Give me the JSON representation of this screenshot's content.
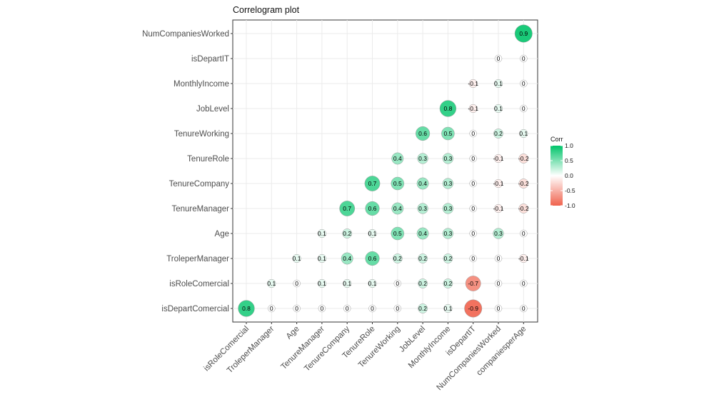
{
  "chart_data": {
    "type": "heatmap",
    "title": "Correlogram plot",
    "x_labels": [
      "isRoleComercial",
      "TroleperManager",
      "Age",
      "TenureManager",
      "TenureCompany",
      "TenureRole",
      "TenureWorking",
      "JobLevel",
      "MonthlyIncome",
      "isDepartIT",
      "NumCompaniesWorked",
      "companiesperAge"
    ],
    "y_labels": [
      "NumCompaniesWorked",
      "isDepartIT",
      "MonthlyIncome",
      "JobLevel",
      "TenureWorking",
      "TenureRole",
      "TenureCompany",
      "TenureManager",
      "Age",
      "TroleperManager",
      "isRoleComercial",
      "isDepartComercial"
    ],
    "cells": [
      {
        "row": 0,
        "col": 11,
        "value": 0.9,
        "label": "0.9"
      },
      {
        "row": 1,
        "col": 10,
        "value": 0.0,
        "label": "0"
      },
      {
        "row": 1,
        "col": 11,
        "value": 0.0,
        "label": "0"
      },
      {
        "row": 2,
        "col": 9,
        "value": -0.1,
        "label": "-0.1"
      },
      {
        "row": 2,
        "col": 10,
        "value": 0.1,
        "label": "0.1"
      },
      {
        "row": 2,
        "col": 11,
        "value": 0.0,
        "label": "0"
      },
      {
        "row": 3,
        "col": 8,
        "value": 0.8,
        "label": "0.8"
      },
      {
        "row": 3,
        "col": 9,
        "value": -0.1,
        "label": "-0.1"
      },
      {
        "row": 3,
        "col": 10,
        "value": 0.1,
        "label": "0.1"
      },
      {
        "row": 3,
        "col": 11,
        "value": 0.0,
        "label": "0"
      },
      {
        "row": 4,
        "col": 7,
        "value": 0.6,
        "label": "0.6"
      },
      {
        "row": 4,
        "col": 8,
        "value": 0.5,
        "label": "0.5"
      },
      {
        "row": 4,
        "col": 9,
        "value": 0.0,
        "label": "0"
      },
      {
        "row": 4,
        "col": 10,
        "value": 0.2,
        "label": "0.2"
      },
      {
        "row": 4,
        "col": 11,
        "value": 0.1,
        "label": "0.1"
      },
      {
        "row": 5,
        "col": 6,
        "value": 0.4,
        "label": "0.4"
      },
      {
        "row": 5,
        "col": 7,
        "value": 0.3,
        "label": "0.3"
      },
      {
        "row": 5,
        "col": 8,
        "value": 0.3,
        "label": "0.3"
      },
      {
        "row": 5,
        "col": 9,
        "value": 0.0,
        "label": "0"
      },
      {
        "row": 5,
        "col": 10,
        "value": -0.1,
        "label": "-0.1"
      },
      {
        "row": 5,
        "col": 11,
        "value": -0.2,
        "label": "-0.2"
      },
      {
        "row": 6,
        "col": 5,
        "value": 0.7,
        "label": "0.7"
      },
      {
        "row": 6,
        "col": 6,
        "value": 0.5,
        "label": "0.5"
      },
      {
        "row": 6,
        "col": 7,
        "value": 0.4,
        "label": "0.4"
      },
      {
        "row": 6,
        "col": 8,
        "value": 0.3,
        "label": "0.3"
      },
      {
        "row": 6,
        "col": 9,
        "value": 0.0,
        "label": "0"
      },
      {
        "row": 6,
        "col": 10,
        "value": -0.1,
        "label": "-0.1"
      },
      {
        "row": 6,
        "col": 11,
        "value": -0.2,
        "label": "-0.2"
      },
      {
        "row": 7,
        "col": 4,
        "value": 0.7,
        "label": "0.7"
      },
      {
        "row": 7,
        "col": 5,
        "value": 0.6,
        "label": "0.6"
      },
      {
        "row": 7,
        "col": 6,
        "value": 0.4,
        "label": "0.4"
      },
      {
        "row": 7,
        "col": 7,
        "value": 0.3,
        "label": "0.3"
      },
      {
        "row": 7,
        "col": 8,
        "value": 0.3,
        "label": "0.3"
      },
      {
        "row": 7,
        "col": 9,
        "value": 0.0,
        "label": "0"
      },
      {
        "row": 7,
        "col": 10,
        "value": -0.1,
        "label": "-0.1"
      },
      {
        "row": 7,
        "col": 11,
        "value": -0.2,
        "label": "-0.2"
      },
      {
        "row": 8,
        "col": 3,
        "value": 0.1,
        "label": "0.1"
      },
      {
        "row": 8,
        "col": 4,
        "value": 0.2,
        "label": "0.2"
      },
      {
        "row": 8,
        "col": 5,
        "value": 0.1,
        "label": "0.1"
      },
      {
        "row": 8,
        "col": 6,
        "value": 0.5,
        "label": "0.5"
      },
      {
        "row": 8,
        "col": 7,
        "value": 0.4,
        "label": "0.4"
      },
      {
        "row": 8,
        "col": 8,
        "value": 0.3,
        "label": "0.3"
      },
      {
        "row": 8,
        "col": 9,
        "value": 0.0,
        "label": "0"
      },
      {
        "row": 8,
        "col": 10,
        "value": 0.3,
        "label": "0.3"
      },
      {
        "row": 8,
        "col": 11,
        "value": 0.0,
        "label": "0"
      },
      {
        "row": 9,
        "col": 2,
        "value": 0.1,
        "label": "0.1"
      },
      {
        "row": 9,
        "col": 3,
        "value": 0.1,
        "label": "0.1"
      },
      {
        "row": 9,
        "col": 4,
        "value": 0.4,
        "label": "0.4"
      },
      {
        "row": 9,
        "col": 5,
        "value": 0.6,
        "label": "0.6"
      },
      {
        "row": 9,
        "col": 6,
        "value": 0.2,
        "label": "0.2"
      },
      {
        "row": 9,
        "col": 7,
        "value": 0.2,
        "label": "0.2"
      },
      {
        "row": 9,
        "col": 8,
        "value": 0.2,
        "label": "0.2"
      },
      {
        "row": 9,
        "col": 9,
        "value": 0.0,
        "label": "0"
      },
      {
        "row": 9,
        "col": 10,
        "value": 0.0,
        "label": "0"
      },
      {
        "row": 9,
        "col": 11,
        "value": -0.1,
        "label": "-0.1"
      },
      {
        "row": 10,
        "col": 1,
        "value": 0.1,
        "label": "0.1"
      },
      {
        "row": 10,
        "col": 2,
        "value": 0.0,
        "label": "0"
      },
      {
        "row": 10,
        "col": 3,
        "value": 0.1,
        "label": "0.1"
      },
      {
        "row": 10,
        "col": 4,
        "value": 0.1,
        "label": "0.1"
      },
      {
        "row": 10,
        "col": 5,
        "value": 0.1,
        "label": "0.1"
      },
      {
        "row": 10,
        "col": 6,
        "value": 0.0,
        "label": "0"
      },
      {
        "row": 10,
        "col": 7,
        "value": 0.2,
        "label": "0.2"
      },
      {
        "row": 10,
        "col": 8,
        "value": 0.2,
        "label": "0.2"
      },
      {
        "row": 10,
        "col": 9,
        "value": -0.7,
        "label": "-0.7"
      },
      {
        "row": 10,
        "col": 10,
        "value": 0.0,
        "label": "0"
      },
      {
        "row": 10,
        "col": 11,
        "value": 0.0,
        "label": "0"
      },
      {
        "row": 11,
        "col": 0,
        "value": 0.8,
        "label": "0.8"
      },
      {
        "row": 11,
        "col": 1,
        "value": 0.0,
        "label": "0"
      },
      {
        "row": 11,
        "col": 2,
        "value": 0.0,
        "label": "0"
      },
      {
        "row": 11,
        "col": 3,
        "value": 0.0,
        "label": "0"
      },
      {
        "row": 11,
        "col": 4,
        "value": 0.0,
        "label": "0"
      },
      {
        "row": 11,
        "col": 5,
        "value": 0.0,
        "label": "0"
      },
      {
        "row": 11,
        "col": 6,
        "value": 0.0,
        "label": "0"
      },
      {
        "row": 11,
        "col": 7,
        "value": 0.2,
        "label": "0.2"
      },
      {
        "row": 11,
        "col": 8,
        "value": 0.1,
        "label": "0.1"
      },
      {
        "row": 11,
        "col": 9,
        "value": -0.9,
        "label": "-0.9"
      },
      {
        "row": 11,
        "col": 10,
        "value": 0.0,
        "label": "0"
      },
      {
        "row": 11,
        "col": 11,
        "value": 0.0,
        "label": "0"
      }
    ],
    "legend": {
      "title": "Corr",
      "ticks": [
        "1.0",
        "0.5",
        "0.0",
        "-0.5",
        "-1.0"
      ],
      "tick_values": [
        1.0,
        0.5,
        0.0,
        -0.5,
        -1.0
      ],
      "placement": "right",
      "low_color": "#F0624D",
      "mid_color": "#FFFFFF",
      "high_color": "#00C46A"
    },
    "value_range": [
      -1,
      1
    ],
    "grid": true
  }
}
